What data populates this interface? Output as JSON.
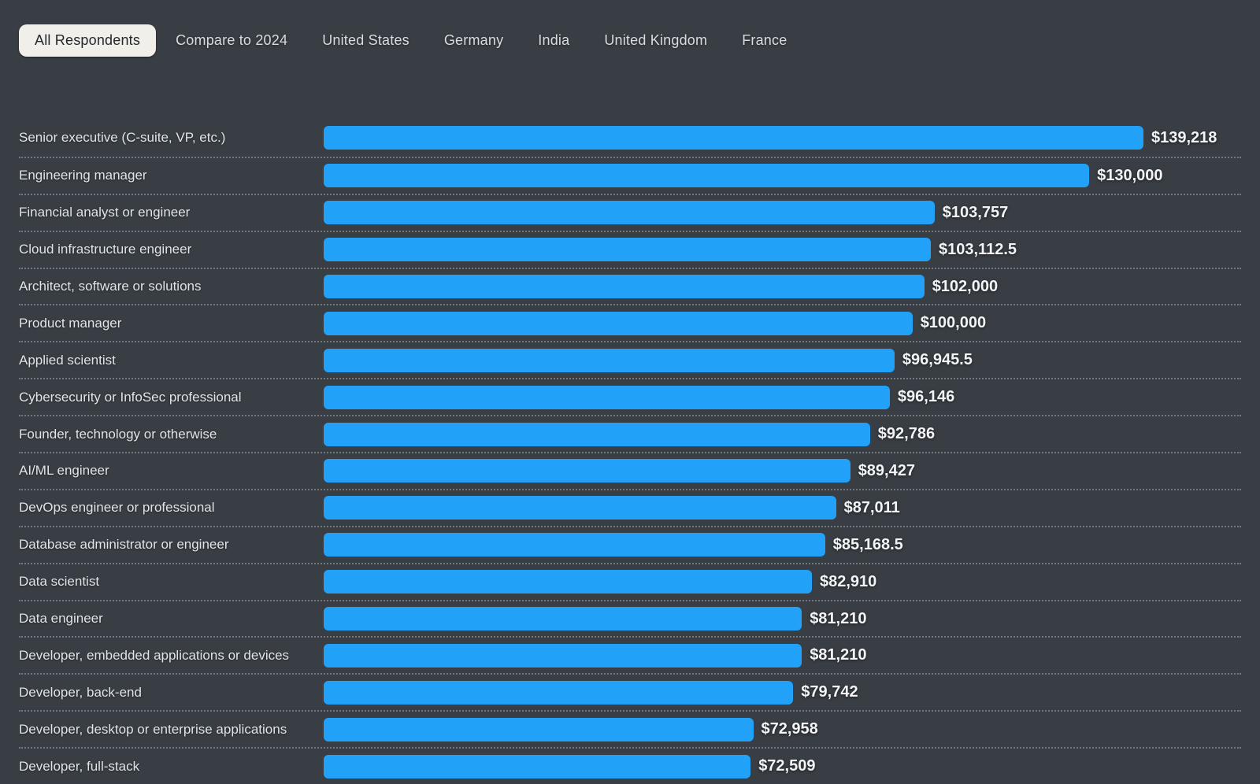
{
  "tabs": {
    "items": [
      {
        "id": "all-respondents",
        "label": "All Respondents",
        "active": true
      },
      {
        "id": "compare-to-2024",
        "label": "Compare to 2024",
        "active": false
      },
      {
        "id": "united-states",
        "label": "United States",
        "active": false
      },
      {
        "id": "germany",
        "label": "Germany",
        "active": false
      },
      {
        "id": "india",
        "label": "India",
        "active": false
      },
      {
        "id": "united-kingdom",
        "label": "United Kingdom",
        "active": false
      },
      {
        "id": "france",
        "label": "France",
        "active": false
      }
    ]
  },
  "chart_data": {
    "type": "bar",
    "orientation": "horizontal",
    "legend": "none",
    "grid": false,
    "xlim": [
      0,
      139218
    ],
    "categories": [
      "Senior executive (C-suite, VP, etc.)",
      "Engineering manager",
      "Financial analyst or engineer",
      "Cloud infrastructure engineer",
      "Architect, software or solutions",
      "Product manager",
      "Applied scientist",
      "Cybersecurity or InfoSec professional",
      "Founder, technology or otherwise",
      "AI/ML engineer",
      "DevOps engineer or professional",
      "Database administrator or engineer",
      "Data scientist",
      "Data engineer",
      "Developer, embedded applications or devices",
      "Developer, back-end",
      "Developer, desktop or enterprise applications",
      "Developer, full-stack"
    ],
    "values": [
      139218,
      130000,
      103757,
      103112.5,
      102000,
      100000,
      96945.5,
      96146,
      92786,
      89427,
      87011,
      85168.5,
      82910,
      81210,
      81210,
      79742,
      72958,
      72509
    ],
    "value_labels": [
      "$139,218",
      "$130,000",
      "$103,757",
      "$103,112.5",
      "$102,000",
      "$100,000",
      "$96,945.5",
      "$96,146",
      "$92,786",
      "$89,427",
      "$87,011",
      "$85,168.5",
      "$82,910",
      "$81,210",
      "$81,210",
      "$79,742",
      "$72,958",
      "$72,509"
    ]
  },
  "colors": {
    "background": "#393E44",
    "bar": "#22A1F8",
    "separator_dotted": "rgba(255,255,255,0.30)",
    "category_text": "#E2E5E8",
    "value_text": "#F2F4F6",
    "tab_text": "#D9DDE0",
    "active_tab_background": "#F1EFE9",
    "active_tab_text": "#24282C"
  }
}
